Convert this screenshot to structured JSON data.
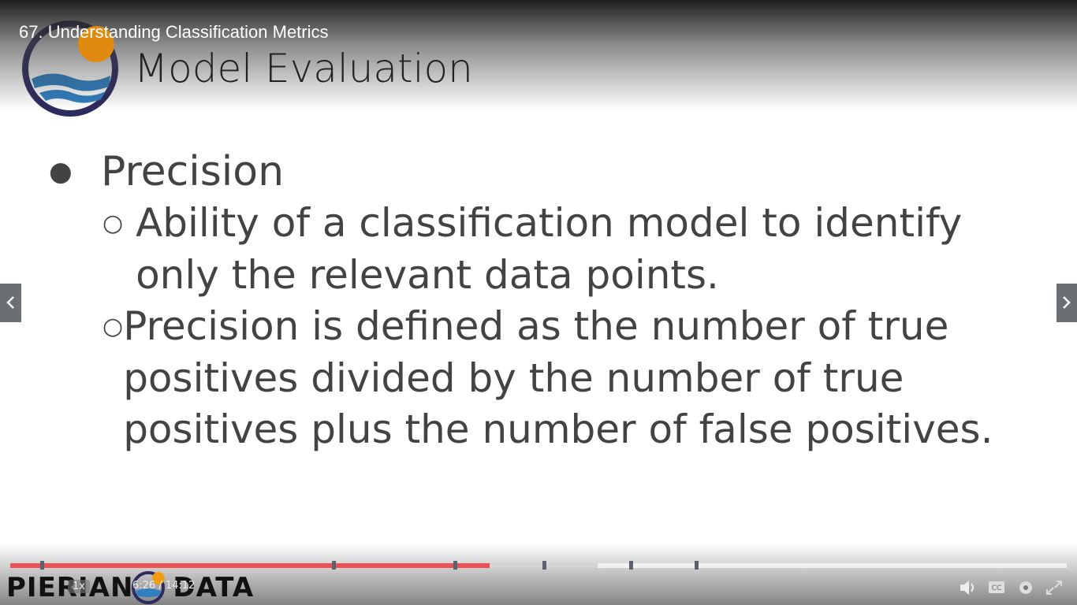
{
  "header": {
    "title": "67. Understanding Classification Metrics"
  },
  "slide": {
    "title": "Model Evaluation",
    "bullets": [
      {
        "text": "Precision",
        "sub": [
          "Ability of a classification model to identify only the relevant data points.",
          "Precision is defined as the number of true positives divided by the number of true positives plus the number of false positives."
        ]
      }
    ],
    "footer_logo": [
      "PIERIAN",
      "DATA"
    ]
  },
  "controls": {
    "speed": "1x",
    "time": "6:26 / 14:12"
  }
}
